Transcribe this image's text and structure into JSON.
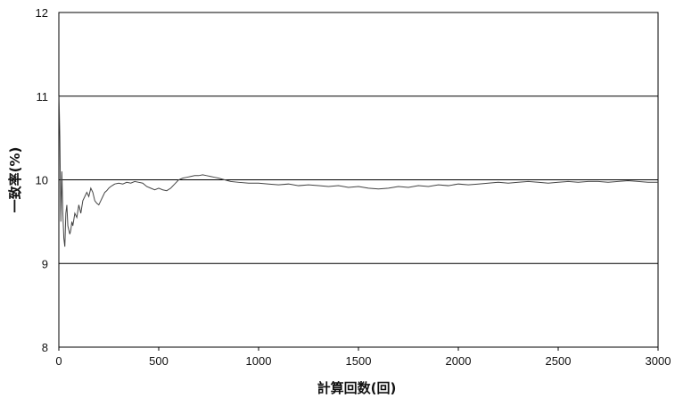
{
  "chart_data": {
    "type": "line",
    "title": "",
    "xlabel": "計算回数(回)",
    "ylabel": "一致率(%)",
    "xlim": [
      0,
      3000
    ],
    "ylim": [
      8,
      12
    ],
    "x_ticks": [
      0,
      500,
      1000,
      1500,
      2000,
      2500,
      3000
    ],
    "x_tick_labels": [
      "0",
      "500",
      "1000",
      "1500",
      "2000",
      "2500",
      "3000"
    ],
    "y_ticks": [
      8,
      9,
      10,
      11,
      12
    ],
    "y_tick_labels": [
      "8",
      "9",
      "10",
      "11",
      "12"
    ],
    "grid": "horizontal",
    "legend": "none",
    "colors": {
      "line": "#444444",
      "axis": "#000000",
      "grid": "#000000"
    },
    "series": [
      {
        "x": [
          1,
          5,
          10,
          15,
          20,
          25,
          30,
          35,
          40,
          45,
          50,
          55,
          60,
          65,
          70,
          80,
          90,
          100,
          110,
          120,
          130,
          140,
          150,
          160,
          170,
          180,
          190,
          200,
          210,
          220,
          230,
          240,
          250,
          260,
          280,
          300,
          320,
          340,
          360,
          380,
          400,
          420,
          440,
          460,
          480,
          500,
          520,
          540,
          560,
          580,
          600,
          620,
          640,
          660,
          680,
          700,
          720,
          740,
          760,
          780,
          800,
          830,
          860,
          900,
          950,
          1000,
          1050,
          1100,
          1150,
          1200,
          1250,
          1300,
          1350,
          1400,
          1450,
          1500,
          1550,
          1600,
          1650,
          1700,
          1750,
          1800,
          1850,
          1900,
          1950,
          2000,
          2050,
          2100,
          2150,
          2200,
          2250,
          2300,
          2350,
          2400,
          2450,
          2500,
          2550,
          2600,
          2650,
          2700,
          2750,
          2800,
          2850,
          2900,
          2950,
          3000
        ],
        "y": [
          11.0,
          10.5,
          9.5,
          10.1,
          9.6,
          9.3,
          9.2,
          9.6,
          9.7,
          9.45,
          9.4,
          9.35,
          9.4,
          9.5,
          9.45,
          9.6,
          9.55,
          9.7,
          9.6,
          9.75,
          9.8,
          9.85,
          9.8,
          9.9,
          9.85,
          9.75,
          9.72,
          9.7,
          9.75,
          9.8,
          9.85,
          9.87,
          9.9,
          9.92,
          9.95,
          9.96,
          9.95,
          9.97,
          9.96,
          9.98,
          9.97,
          9.96,
          9.92,
          9.9,
          9.88,
          9.9,
          9.88,
          9.87,
          9.9,
          9.95,
          10.0,
          10.02,
          10.03,
          10.04,
          10.05,
          10.05,
          10.06,
          10.05,
          10.04,
          10.03,
          10.02,
          10.0,
          9.98,
          9.97,
          9.96,
          9.96,
          9.95,
          9.94,
          9.95,
          9.93,
          9.94,
          9.93,
          9.92,
          9.93,
          9.91,
          9.92,
          9.9,
          9.89,
          9.9,
          9.92,
          9.91,
          9.93,
          9.92,
          9.94,
          9.93,
          9.95,
          9.94,
          9.95,
          9.96,
          9.97,
          9.96,
          9.97,
          9.98,
          9.97,
          9.96,
          9.97,
          9.98,
          9.97,
          9.98,
          9.98,
          9.97,
          9.98,
          9.99,
          9.98,
          9.97,
          9.97
        ]
      }
    ]
  }
}
